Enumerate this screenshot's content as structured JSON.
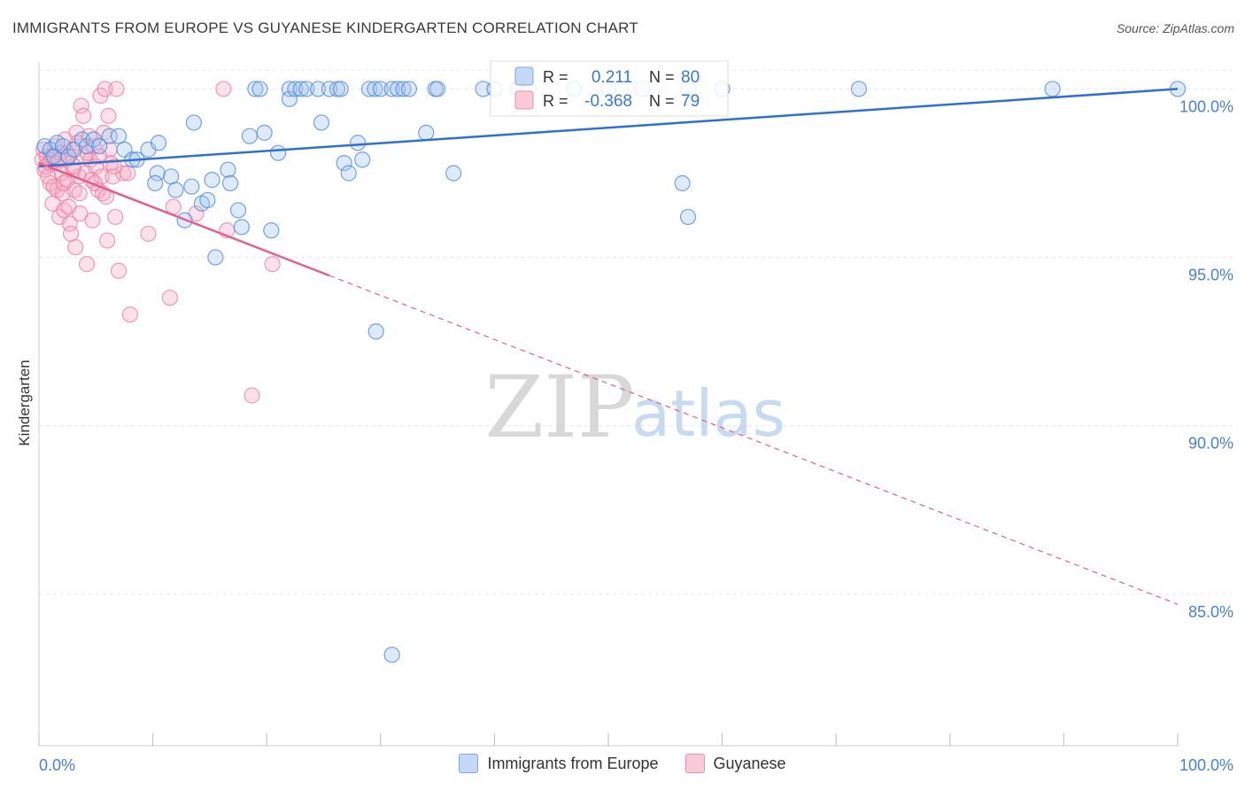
{
  "header": {
    "title": "IMMIGRANTS FROM EUROPE VS GUYANESE KINDERGARTEN CORRELATION CHART",
    "source": "Source: ZipAtlas.com"
  },
  "watermark": {
    "zip": "ZIP",
    "atlas": "atlas"
  },
  "colors": {
    "blue": "#4a86d8",
    "blue_fill": "rgba(160,195,240,0.35)",
    "blue_line": "#2f6fcf",
    "pink": "#e97ca0",
    "pink_fill": "rgba(245,170,195,0.35)",
    "pink_line": "#e0608e",
    "axis_text": "#4a7fd4"
  },
  "legend_box": {
    "rows": [
      {
        "r_label": "R =",
        "r_value": "0.211",
        "n_label": "N =",
        "n_value": "80"
      },
      {
        "r_label": "R =",
        "r_value": "-0.368",
        "n_label": "N =",
        "n_value": "79"
      }
    ]
  },
  "bottom_legend": {
    "series1": "Immigrants from Europe",
    "series2": "Guyanese"
  },
  "chart_data": {
    "type": "scatter",
    "title": "IMMIGRANTS FROM EUROPE VS GUYANESE KINDERGARTEN CORRELATION CHART",
    "xlabel": "",
    "ylabel": "Kindergarten",
    "xlim": [
      0,
      100
    ],
    "ylim": [
      80.5,
      100.8
    ],
    "x_tick_labels": [
      "0.0%",
      "100.0%"
    ],
    "y_ticks": [
      85,
      90,
      95,
      100
    ],
    "y_tick_labels": [
      "85.0%",
      "90.0%",
      "95.0%",
      "100.0%"
    ],
    "series": [
      {
        "name": "Immigrants from Europe",
        "R": 0.211,
        "N": 80,
        "trend": {
          "x": [
            0,
            100
          ],
          "y": [
            97.7,
            100.0
          ],
          "style": "solid"
        },
        "points": [
          [
            0.5,
            98.3
          ],
          [
            1.0,
            98.2
          ],
          [
            1.3,
            98.0
          ],
          [
            1.6,
            98.4
          ],
          [
            2.1,
            98.3
          ],
          [
            2.6,
            98.0
          ],
          [
            3.1,
            98.2
          ],
          [
            3.8,
            98.5
          ],
          [
            4.2,
            98.3
          ],
          [
            4.8,
            98.5
          ],
          [
            5.3,
            98.3
          ],
          [
            6.2,
            98.6
          ],
          [
            7.0,
            98.6
          ],
          [
            7.5,
            98.2
          ],
          [
            8.2,
            97.9
          ],
          [
            8.6,
            97.9
          ],
          [
            9.6,
            98.2
          ],
          [
            10.5,
            98.4
          ],
          [
            10.4,
            97.5
          ],
          [
            10.2,
            97.2
          ],
          [
            11.6,
            97.4
          ],
          [
            12.0,
            97.0
          ],
          [
            12.8,
            96.1
          ],
          [
            13.4,
            97.1
          ],
          [
            13.6,
            99.0
          ],
          [
            14.3,
            96.6
          ],
          [
            14.8,
            96.7
          ],
          [
            15.2,
            97.3
          ],
          [
            15.5,
            95.0
          ],
          [
            16.6,
            97.6
          ],
          [
            16.8,
            97.2
          ],
          [
            17.5,
            96.4
          ],
          [
            17.8,
            95.9
          ],
          [
            18.5,
            98.6
          ],
          [
            19.0,
            100.0
          ],
          [
            19.4,
            100.0
          ],
          [
            19.8,
            98.7
          ],
          [
            20.4,
            95.8
          ],
          [
            21.0,
            98.1
          ],
          [
            22.0,
            100.0
          ],
          [
            22.0,
            99.7
          ],
          [
            22.5,
            100.0
          ],
          [
            23.0,
            100.0
          ],
          [
            23.5,
            100.0
          ],
          [
            24.5,
            100.0
          ],
          [
            24.8,
            99.0
          ],
          [
            25.5,
            100.0
          ],
          [
            26.2,
            100.0
          ],
          [
            26.5,
            100.0
          ],
          [
            26.8,
            97.8
          ],
          [
            27.2,
            97.5
          ],
          [
            28.0,
            98.4
          ],
          [
            28.4,
            97.9
          ],
          [
            29.0,
            100.0
          ],
          [
            29.5,
            100.0
          ],
          [
            30.0,
            100.0
          ],
          [
            31.0,
            100.0
          ],
          [
            31.5,
            100.0
          ],
          [
            32.0,
            100.0
          ],
          [
            32.5,
            100.0
          ],
          [
            29.6,
            92.8
          ],
          [
            34.0,
            98.7
          ],
          [
            34.8,
            100.0
          ],
          [
            35.0,
            100.0
          ],
          [
            36.4,
            97.5
          ],
          [
            31.0,
            83.2
          ],
          [
            39.0,
            100.0
          ],
          [
            40.0,
            100.0
          ],
          [
            42.0,
            100.0
          ],
          [
            43.0,
            100.0
          ],
          [
            47.0,
            100.0
          ],
          [
            50.0,
            100.0
          ],
          [
            53.0,
            100.0
          ],
          [
            57.0,
            100.0
          ],
          [
            60.0,
            100.0
          ],
          [
            56.5,
            97.2
          ],
          [
            57.0,
            96.2
          ],
          [
            72.0,
            100.0
          ],
          [
            89.0,
            100.0
          ],
          [
            100.0,
            100.0
          ]
        ]
      },
      {
        "name": "Guyanese",
        "R": -0.368,
        "N": 79,
        "trend": {
          "x": [
            0,
            100
          ],
          "y": [
            97.8,
            84.7
          ],
          "solid_until": 25.5,
          "style": "solid-then-dashed"
        },
        "points": [
          [
            0.3,
            97.9
          ],
          [
            0.5,
            97.6
          ],
          [
            0.7,
            98.0
          ],
          [
            0.9,
            97.8
          ],
          [
            1.0,
            97.2
          ],
          [
            1.2,
            96.6
          ],
          [
            1.4,
            98.3
          ],
          [
            1.5,
            97.8
          ],
          [
            1.6,
            97.0
          ],
          [
            1.8,
            96.2
          ],
          [
            1.9,
            98.1
          ],
          [
            2.0,
            97.5
          ],
          [
            2.1,
            96.9
          ],
          [
            2.2,
            96.4
          ],
          [
            2.3,
            98.5
          ],
          [
            2.4,
            97.9
          ],
          [
            2.5,
            97.3
          ],
          [
            2.6,
            96.5
          ],
          [
            2.7,
            96.0
          ],
          [
            2.8,
            95.7
          ],
          [
            2.9,
            98.2
          ],
          [
            3.0,
            97.6
          ],
          [
            3.1,
            97.0
          ],
          [
            3.2,
            95.3
          ],
          [
            3.3,
            98.7
          ],
          [
            3.4,
            98.4
          ],
          [
            3.5,
            97.4
          ],
          [
            3.6,
            96.3
          ],
          [
            3.7,
            99.5
          ],
          [
            3.9,
            99.2
          ],
          [
            4.0,
            98.0
          ],
          [
            4.1,
            97.5
          ],
          [
            4.2,
            94.8
          ],
          [
            4.4,
            98.6
          ],
          [
            4.5,
            97.9
          ],
          [
            4.6,
            97.3
          ],
          [
            4.7,
            96.1
          ],
          [
            4.8,
            98.3
          ],
          [
            5.0,
            97.7
          ],
          [
            5.2,
            97.0
          ],
          [
            5.4,
            99.8
          ],
          [
            5.5,
            97.4
          ],
          [
            5.6,
            96.9
          ],
          [
            5.7,
            98.7
          ],
          [
            5.8,
            100.0
          ],
          [
            6.0,
            95.5
          ],
          [
            6.1,
            99.2
          ],
          [
            6.2,
            98.2
          ],
          [
            6.3,
            97.8
          ],
          [
            6.5,
            97.4
          ],
          [
            6.7,
            96.2
          ],
          [
            6.8,
            100.0
          ],
          [
            7.0,
            94.6
          ],
          [
            7.4,
            97.5
          ],
          [
            7.8,
            97.5
          ],
          [
            8.0,
            93.3
          ],
          [
            9.6,
            95.7
          ],
          [
            11.5,
            93.8
          ],
          [
            11.8,
            96.5
          ],
          [
            13.8,
            96.3
          ],
          [
            16.5,
            95.8
          ],
          [
            16.2,
            100.0
          ],
          [
            18.7,
            90.9
          ],
          [
            20.5,
            94.8
          ],
          [
            0.4,
            98.2
          ],
          [
            0.6,
            97.7
          ],
          [
            0.8,
            97.4
          ],
          [
            1.1,
            98.0
          ],
          [
            1.3,
            97.1
          ],
          [
            2.15,
            97.2
          ],
          [
            3.05,
            97.7
          ],
          [
            3.55,
            96.9
          ],
          [
            4.25,
            98.1
          ],
          [
            4.9,
            97.2
          ],
          [
            5.3,
            98.0
          ],
          [
            5.9,
            96.8
          ],
          [
            6.6,
            97.7
          ],
          [
            2.55,
            98.0
          ],
          [
            1.75,
            97.9
          ]
        ]
      }
    ]
  }
}
